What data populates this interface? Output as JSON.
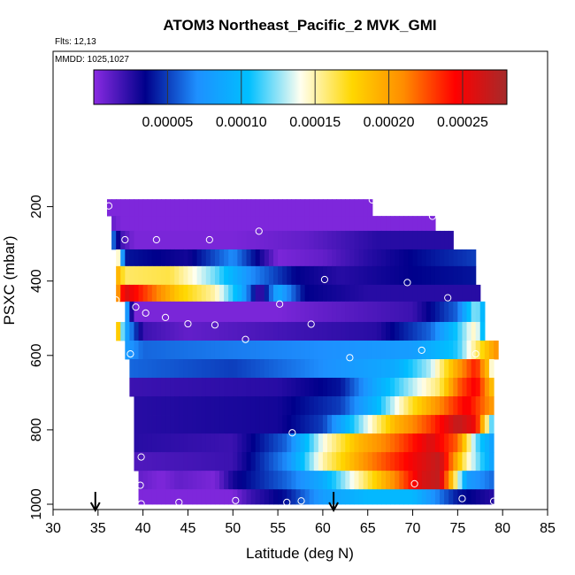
{
  "chart_data": {
    "type": "heatmap",
    "title": "ATOM3 Northeast_Pacific_2 MVK_GMI",
    "annotations": {
      "flights": "Flts: 12,13",
      "dates": "MMDD: 1025,1027"
    },
    "xlabel": "Latitude (deg N)",
    "ylabel": "PSXC (mbar)",
    "xlim": [
      30,
      85
    ],
    "ylim": [
      1000,
      100
    ],
    "x_ticks": [
      30,
      35,
      40,
      45,
      50,
      55,
      60,
      65,
      70,
      75,
      80,
      85
    ],
    "y_ticks": [
      200,
      400,
      600,
      800,
      1000
    ],
    "colorbar": {
      "range": [
        0,
        0.00028
      ],
      "ticks": [
        5e-05,
        0.0001,
        0.00015,
        0.0002,
        0.00025
      ],
      "tick_labels": [
        "0.00005",
        "0.00010",
        "0.00015",
        "0.00020",
        "0.00025"
      ],
      "colors": [
        "#8a2be2",
        "#00008b",
        "#1e90ff",
        "#00bfff",
        "#fffff0",
        "#ffd700",
        "#ff8c00",
        "#ff0000",
        "#a52a2a"
      ]
    },
    "bands": [
      {
        "p0": 180,
        "p1": 225,
        "lat0": 36.0,
        "lat1": 65.5,
        "stops": [
          [
            36,
            3e-06
          ],
          [
            65.5,
            3e-06
          ]
        ]
      },
      {
        "p0": 225,
        "p1": 265,
        "lat0": 36.5,
        "lat1": 72.5,
        "stops": [
          [
            36.5,
            1e-05
          ],
          [
            37.5,
            3e-06
          ],
          [
            72.5,
            3e-06
          ]
        ]
      },
      {
        "p0": 265,
        "p1": 315,
        "lat0": 36.5,
        "lat1": 74.5,
        "stops": [
          [
            36.5,
            7e-05
          ],
          [
            37.5,
            2e-05
          ],
          [
            39,
            4e-06
          ],
          [
            50,
            4e-06
          ],
          [
            58,
            1e-05
          ],
          [
            66,
            2.5e-05
          ],
          [
            74.5,
            2.5e-05
          ]
        ]
      },
      {
        "p0": 315,
        "p1": 360,
        "lat0": 37.0,
        "lat1": 77.0,
        "stops": [
          [
            37,
            0.00018
          ],
          [
            38,
            4e-05
          ],
          [
            45,
            3e-05
          ],
          [
            50,
            7e-05
          ],
          [
            55,
            4e-06
          ],
          [
            60,
            1e-05
          ],
          [
            65,
            2.5e-05
          ],
          [
            72,
            4e-05
          ],
          [
            77,
            5e-05
          ]
        ]
      },
      {
        "p0": 360,
        "p1": 410,
        "lat0": 37.0,
        "lat1": 77.0,
        "stops": [
          [
            37,
            0.0002
          ],
          [
            38,
            0.00016
          ],
          [
            43,
            0.000165
          ],
          [
            48,
            0.00012
          ],
          [
            52,
            7e-05
          ],
          [
            57,
            3.5e-05
          ],
          [
            62,
            2.5e-05
          ],
          [
            70,
            3.5e-05
          ],
          [
            77,
            4e-05
          ]
        ]
      },
      {
        "p0": 410,
        "p1": 455,
        "lat0": 37.0,
        "lat1": 77.5,
        "stops": [
          [
            37,
            0.00019
          ],
          [
            38,
            0.00026
          ],
          [
            41,
            0.00022
          ],
          [
            44,
            0.00018
          ],
          [
            48,
            0.00015
          ],
          [
            51,
            9e-05
          ],
          [
            53,
            1.5e-05
          ],
          [
            55,
            9e-05
          ],
          [
            58,
            3.5e-05
          ],
          [
            65,
            2.5e-05
          ],
          [
            77.5,
            2.5e-05
          ]
        ]
      },
      {
        "p0": 455,
        "p1": 510,
        "lat0": 38.0,
        "lat1": 78.0,
        "stops": [
          [
            38,
            0.0001
          ],
          [
            39,
            4e-06
          ],
          [
            55,
            4e-06
          ],
          [
            60,
            1e-05
          ],
          [
            70,
            2e-05
          ],
          [
            75,
            6e-05
          ],
          [
            77,
            0.00013
          ],
          [
            78,
            9e-05
          ]
        ]
      },
      {
        "p0": 510,
        "p1": 560,
        "lat0": 37.0,
        "lat1": 78.0,
        "stops": [
          [
            37,
            0.00021
          ],
          [
            38,
            9e-05
          ],
          [
            40,
            2e-05
          ],
          [
            45,
            1e-05
          ],
          [
            58,
            2e-05
          ],
          [
            66,
            2.5e-05
          ],
          [
            72,
            6e-05
          ],
          [
            75,
            0.00011
          ],
          [
            77,
            0.00015
          ],
          [
            78,
            9e-05
          ]
        ]
      },
      {
        "p0": 560,
        "p1": 610,
        "lat0": 38.0,
        "lat1": 79.5,
        "stops": [
          [
            38,
            8e-05
          ],
          [
            40,
            6e-05
          ],
          [
            60,
            7e-05
          ],
          [
            70,
            8e-05
          ],
          [
            75,
            0.00011
          ],
          [
            78,
            0.00018
          ],
          [
            79.5,
            0.00021
          ]
        ]
      },
      {
        "p0": 610,
        "p1": 660,
        "lat0": 38.5,
        "lat1": 79.0,
        "stops": [
          [
            38.5,
            6e-05
          ],
          [
            50,
            5e-05
          ],
          [
            60,
            7e-05
          ],
          [
            68,
            9e-05
          ],
          [
            72,
            0.00013
          ],
          [
            75,
            0.0002
          ],
          [
            77,
            0.00024
          ],
          [
            78.5,
            0.00018
          ],
          [
            79,
            0.00011
          ]
        ]
      },
      {
        "p0": 660,
        "p1": 710,
        "lat0": 38.5,
        "lat1": 79.0,
        "stops": [
          [
            38.5,
            2e-05
          ],
          [
            55,
            2.5e-05
          ],
          [
            62,
            4e-05
          ],
          [
            66,
            9e-05
          ],
          [
            70,
            0.00013
          ],
          [
            73,
            0.00016
          ],
          [
            75,
            0.00022
          ],
          [
            77,
            0.00025
          ],
          [
            79,
            0.00018
          ]
        ]
      },
      {
        "p0": 710,
        "p1": 760,
        "lat0": 39.0,
        "lat1": 79.0,
        "stops": [
          [
            39,
            2.5e-05
          ],
          [
            55,
            3e-05
          ],
          [
            62,
            5e-05
          ],
          [
            66,
            0.0001
          ],
          [
            70,
            0.00017
          ],
          [
            73,
            0.00021
          ],
          [
            76,
            0.00025
          ],
          [
            79,
            0.0002
          ]
        ]
      },
      {
        "p0": 760,
        "p1": 810,
        "lat0": 39.0,
        "lat1": 79.0,
        "stops": [
          [
            39,
            2.5e-05
          ],
          [
            55,
            3e-05
          ],
          [
            60,
            5e-05
          ],
          [
            64,
            0.00012
          ],
          [
            68,
            0.00019
          ],
          [
            72,
            0.00023
          ],
          [
            75,
            0.00027
          ],
          [
            77,
            0.00025
          ],
          [
            79,
            0.0001
          ]
        ]
      },
      {
        "p0": 810,
        "p1": 860,
        "lat0": 39.0,
        "lat1": 79.0,
        "stops": [
          [
            39,
            2.5e-05
          ],
          [
            50,
            2e-05
          ],
          [
            56,
            6e-05
          ],
          [
            60,
            0.00014
          ],
          [
            64,
            0.00019
          ],
          [
            68,
            0.00022
          ],
          [
            72,
            0.00026
          ],
          [
            75,
            0.00022
          ],
          [
            77,
            0.00012
          ],
          [
            79,
            8e-05
          ]
        ]
      },
      {
        "p0": 860,
        "p1": 910,
        "lat0": 39.0,
        "lat1": 79.0,
        "stops": [
          [
            39,
            1.5e-05
          ],
          [
            50,
            2e-05
          ],
          [
            56,
            7e-05
          ],
          [
            60,
            0.00015
          ],
          [
            65,
            0.00021
          ],
          [
            70,
            0.00025
          ],
          [
            73,
            0.00027
          ],
          [
            76,
            0.00015
          ],
          [
            79,
            8e-05
          ]
        ]
      },
      {
        "p0": 910,
        "p1": 960,
        "lat0": 39.5,
        "lat1": 79.0,
        "stops": [
          [
            39.5,
            1e-05
          ],
          [
            42,
            3e-06
          ],
          [
            44,
            1e-05
          ],
          [
            48,
            4e-06
          ],
          [
            50,
            3e-05
          ],
          [
            56,
            6e-05
          ],
          [
            60,
            9e-05
          ],
          [
            64,
            0.00015
          ],
          [
            68,
            0.00021
          ],
          [
            71,
            0.00026
          ],
          [
            73,
            0.00027
          ],
          [
            76,
            8e-05
          ],
          [
            79,
            6e-05
          ]
        ]
      },
      {
        "p0": 960,
        "p1": 1000,
        "lat0": 39.5,
        "lat1": 79.0,
        "stops": [
          [
            39.5,
            3e-06
          ],
          [
            50,
            3e-06
          ],
          [
            52,
            2e-05
          ],
          [
            56,
            4e-05
          ],
          [
            60,
            8e-05
          ],
          [
            65,
            0.0001
          ],
          [
            70,
            0.0001
          ],
          [
            75,
            4e-05
          ],
          [
            79,
            2.5e-05
          ]
        ]
      }
    ],
    "points": [
      [
        36.2,
        198
      ],
      [
        65.5,
        182
      ],
      [
        72.2,
        226
      ],
      [
        38.0,
        289
      ],
      [
        41.5,
        289
      ],
      [
        47.4,
        289
      ],
      [
        52.9,
        266
      ],
      [
        78.0,
        353
      ],
      [
        60.2,
        396
      ],
      [
        69.4,
        404
      ],
      [
        73.9,
        445
      ],
      [
        37.0,
        451
      ],
      [
        39.2,
        470
      ],
      [
        40.3,
        486
      ],
      [
        42.5,
        498
      ],
      [
        45.0,
        515
      ],
      [
        48.0,
        518
      ],
      [
        55.2,
        462
      ],
      [
        51.4,
        557
      ],
      [
        58.7,
        516
      ],
      [
        38.6,
        596
      ],
      [
        71.0,
        586
      ],
      [
        77.0,
        596
      ],
      [
        63.0,
        606
      ],
      [
        56.6,
        808
      ],
      [
        39.8,
        873
      ],
      [
        70.2,
        945
      ],
      [
        39.7,
        949
      ],
      [
        44.0,
        995
      ],
      [
        50.3,
        990
      ],
      [
        56.0,
        995
      ],
      [
        57.6,
        991
      ],
      [
        75.5,
        985
      ],
      [
        79.0,
        992
      ],
      [
        39.8,
        999
      ]
    ],
    "arrows": [
      34.7,
      61.2
    ]
  }
}
